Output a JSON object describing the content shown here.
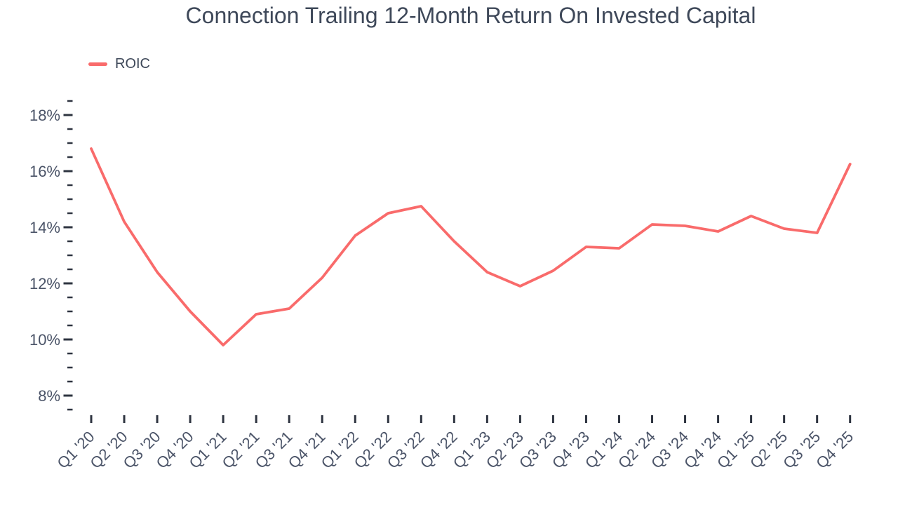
{
  "title": "Connection Trailing 12-Month Return On Invested Capital",
  "legend": {
    "items": [
      {
        "label": "ROIC",
        "color": "#f96b6b"
      }
    ]
  },
  "chart_data": {
    "type": "line",
    "title": "Connection Trailing 12-Month Return On Invested Capital",
    "xlabel": "",
    "ylabel": "",
    "unit": "%",
    "grid": false,
    "legend_position": "top-left",
    "background_color": "#ffffff",
    "categories": [
      "Q1 '20",
      "Q2 '20",
      "Q3 '20",
      "Q4 '20",
      "Q1 '21",
      "Q2 '21",
      "Q3 '21",
      "Q4 '21",
      "Q1 '22",
      "Q2 '22",
      "Q3 '22",
      "Q4 '22",
      "Q1 '23",
      "Q2 '23",
      "Q3 '23",
      "Q4 '23",
      "Q1 '24",
      "Q2 '24",
      "Q3 '24",
      "Q4 '24",
      "Q1 '25",
      "Q2 '25",
      "Q3 '25",
      "Q4 '25"
    ],
    "series": [
      {
        "name": "ROIC",
        "color": "#f96b6b",
        "values": [
          16.8,
          14.2,
          12.4,
          11.0,
          9.8,
          10.9,
          11.1,
          12.2,
          13.7,
          14.5,
          14.75,
          13.5,
          12.4,
          11.9,
          12.45,
          13.3,
          13.25,
          14.1,
          14.05,
          13.85,
          14.4,
          13.95,
          13.8,
          16.25
        ]
      }
    ],
    "y_axis": {
      "tick_values": [
        18,
        16,
        14,
        12,
        10,
        8
      ],
      "tick_labels": [
        "18%",
        "16%",
        "14%",
        "12%",
        "10%",
        "8%"
      ],
      "minor_tick_step": 0.5,
      "range": [
        7.5,
        18.5
      ]
    },
    "x_tick_label_rotation": -45
  }
}
